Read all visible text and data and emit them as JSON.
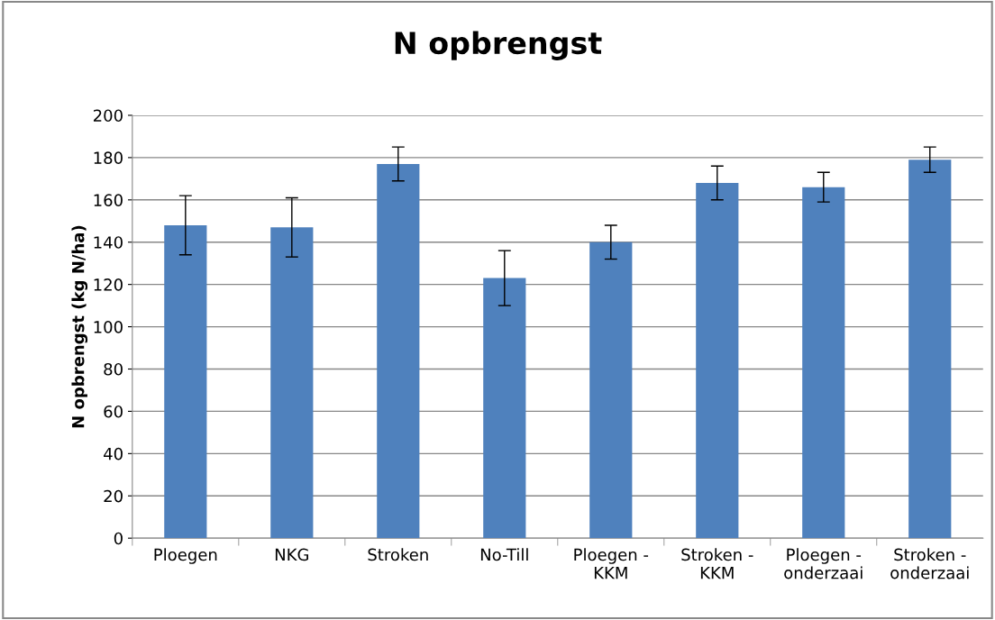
{
  "chart_data": {
    "type": "bar",
    "title": "N opbrengst",
    "ylabel": "N opbrengst (kg N/ha)",
    "categories": [
      "Ploegen",
      "NKG",
      "Stroken",
      "No-Till",
      "Ploegen -\nKKM",
      "Stroken -\nKKM",
      "Ploegen -\nonderzaai",
      "Stroken -\nonderzaai"
    ],
    "values": [
      148,
      147,
      177,
      123,
      140,
      168,
      166,
      179
    ],
    "errors": [
      14,
      14,
      8,
      13,
      8,
      8,
      7,
      6
    ],
    "color": "#4f81bd",
    "ylim": [
      0,
      200
    ],
    "yticks": [
      0,
      20,
      40,
      60,
      80,
      100,
      120,
      140,
      160,
      180,
      200
    ],
    "grid": "y",
    "legend": false
  }
}
